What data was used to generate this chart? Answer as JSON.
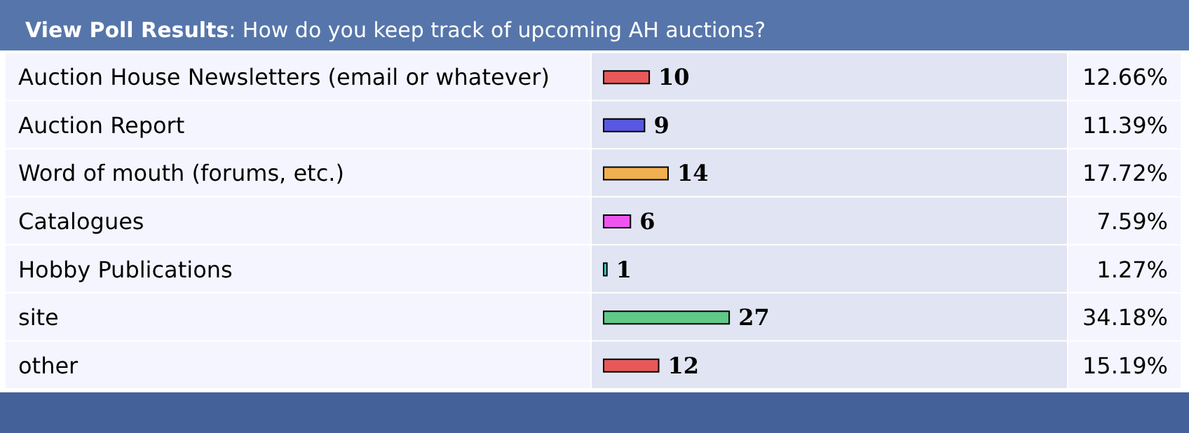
{
  "chart_data": {
    "type": "bar",
    "orientation": "horizontal",
    "title": "View Poll Results",
    "subtitle": ": How do you keep track of upcoming AH auctions?",
    "categories": [
      "Auction House Newsletters (email or whatever)",
      "Auction Report",
      "Word of mouth (forums, etc.)",
      "Catalogues",
      "Hobby Publications",
      "site",
      "other"
    ],
    "values": [
      10,
      9,
      14,
      6,
      1,
      27,
      12
    ],
    "colors": [
      "#e85858",
      "#5858e0",
      "#f0b050",
      "#ee55ee",
      "#40d0d0",
      "#60c888",
      "#e85858"
    ],
    "data_labels": true,
    "annotations": [
      "12.66%",
      "11.39%",
      "17.72%",
      "7.59%",
      "1.27%",
      "34.18%",
      "15.19%"
    ]
  }
}
